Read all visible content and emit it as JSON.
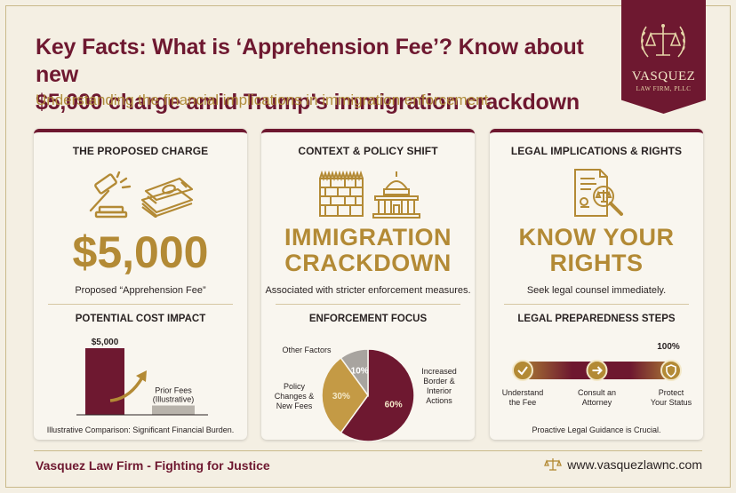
{
  "header": {
    "title_line1": "Key Facts: What is ‘Apprehension Fee’? Know about new",
    "title_line2": "$5,000 charge amid Trump’s immigration crackdown",
    "subtitle": "Understanding the financial implications in immigration enforcement."
  },
  "logo": {
    "name": "VASQUEZ",
    "subname": "LAW FIRM, PLLC",
    "icon": "scales-of-justice-laurel-icon"
  },
  "cards": [
    {
      "title": "THE PROPOSED CHARGE",
      "icons": [
        "gavel-icon",
        "money-stack-icon"
      ],
      "big": "$5,000",
      "caption": "Proposed “Apprehension Fee”",
      "section_title": "POTENTIAL COST IMPACT",
      "footnote": "Illustrative Comparison: Significant Financial Burden."
    },
    {
      "title": "CONTEXT & POLICY SHIFT",
      "icons": [
        "border-wall-icon",
        "capitol-building-icon"
      ],
      "big_line1": "IMMIGRATION",
      "big_line2": "CRACKDOWN",
      "caption": "Associated with stricter enforcement measures.",
      "section_title": "ENFORCEMENT FOCUS"
    },
    {
      "title": "LEGAL IMPLICATIONS & RIGHTS",
      "icons": [
        "legal-document-magnifier-icon"
      ],
      "big_line1": "KNOW YOUR",
      "big_line2": "RIGHTS",
      "caption": "Seek legal counsel immediately.",
      "section_title": "LEGAL PREPAREDNESS STEPS",
      "footnote": "Proactive Legal Guidance is Crucial."
    }
  ],
  "chart_data": [
    {
      "type": "bar",
      "categories": [
        "$5,000",
        "Prior Fees (Illustrative)"
      ],
      "values": [
        5000,
        700
      ],
      "bar_labels": [
        "$5,000",
        "Prior Fees\n(Illustrative)"
      ],
      "colors": [
        "#6e1830",
        "#b8b3ab"
      ],
      "ylim": [
        0,
        6000
      ],
      "grid": false
    },
    {
      "type": "pie",
      "categories": [
        "Increased Border & Interior Actions",
        "Policy Changes & New Fees",
        "Other Factors"
      ],
      "values": [
        60,
        30,
        10
      ],
      "slice_labels": [
        "60%",
        "30%",
        "10%"
      ],
      "colors": [
        "#6e1830",
        "#c49a45",
        "#a8a49f"
      ]
    }
  ],
  "steps": {
    "progress_label": "100%",
    "progress": 1.0,
    "items": [
      {
        "label_line1": "Understand",
        "label_line2": "the Fee",
        "icon": "checkmark-icon"
      },
      {
        "label_line1": "Consult an",
        "label_line2": "Attorney",
        "icon": "arrow-right-icon"
      },
      {
        "label_line1": "Protect",
        "label_line2": "Your Status",
        "icon": "shield-icon"
      }
    ]
  },
  "footer": {
    "left": "Vasquez Law Firm - Fighting for Justice",
    "website": "www.vasquezlawnc.com",
    "icon": "scales-icon"
  },
  "colors": {
    "burgundy": "#6e1830",
    "gold": "#b38a35",
    "background": "#f4efe3"
  }
}
